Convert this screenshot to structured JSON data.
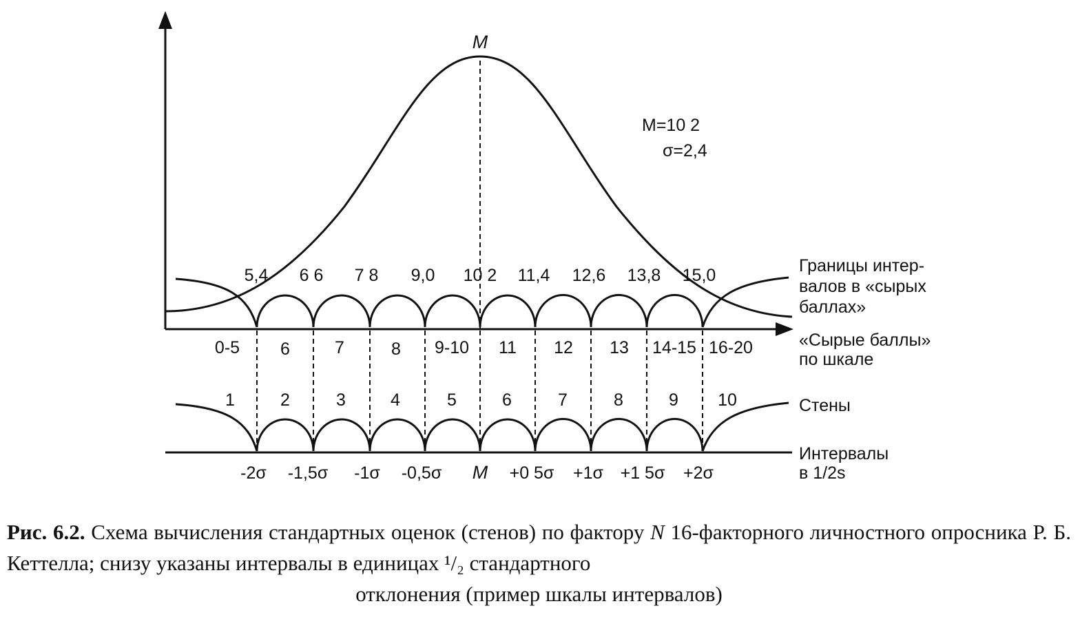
{
  "diagram": {
    "peak_label": "M",
    "params": {
      "mean": "M=10 2",
      "sigma": "σ=2,4"
    },
    "boundaries": [
      "5,4",
      "6 6",
      "7 8",
      "9,0",
      "10 2",
      "11,4",
      "12,6",
      "13,8",
      "15,0"
    ],
    "raw_scores": [
      "0-5",
      "6",
      "7",
      "8",
      "9-10",
      "11",
      "12",
      "13",
      "14-15",
      "16-20"
    ],
    "stens": [
      "1",
      "2",
      "3",
      "4",
      "5",
      "6",
      "7",
      "8",
      "9",
      "10"
    ],
    "sigma_labels": [
      "-2σ",
      "-1,5σ",
      "-1σ",
      "-0,5σ",
      "M",
      "+0 5σ",
      "+1σ",
      "+1 5σ",
      "+2σ"
    ],
    "row_labels": {
      "boundaries": [
        "Границы интер-",
        "валов в «сырых",
        "баллах»"
      ],
      "raw": [
        "«Сырые баллы»",
        "по шкале"
      ],
      "stens": "Стены",
      "intervals": [
        "Интервалы",
        "в 1/2s"
      ]
    }
  },
  "caption": {
    "fig_no": "Рис. 6.2.",
    "text_1": " Схема вычисления стандартных оценок (стенов) по фактору ",
    "factor": "N",
    "text_2": " 16-факторного личностного опросника Р. Б. Кеттелла; снизу указаны интервалы в единицах ",
    "half": "¹/₂",
    "text_3": " стандартного",
    "text_4": "отклонения (пример шкалы интервалов)"
  }
}
